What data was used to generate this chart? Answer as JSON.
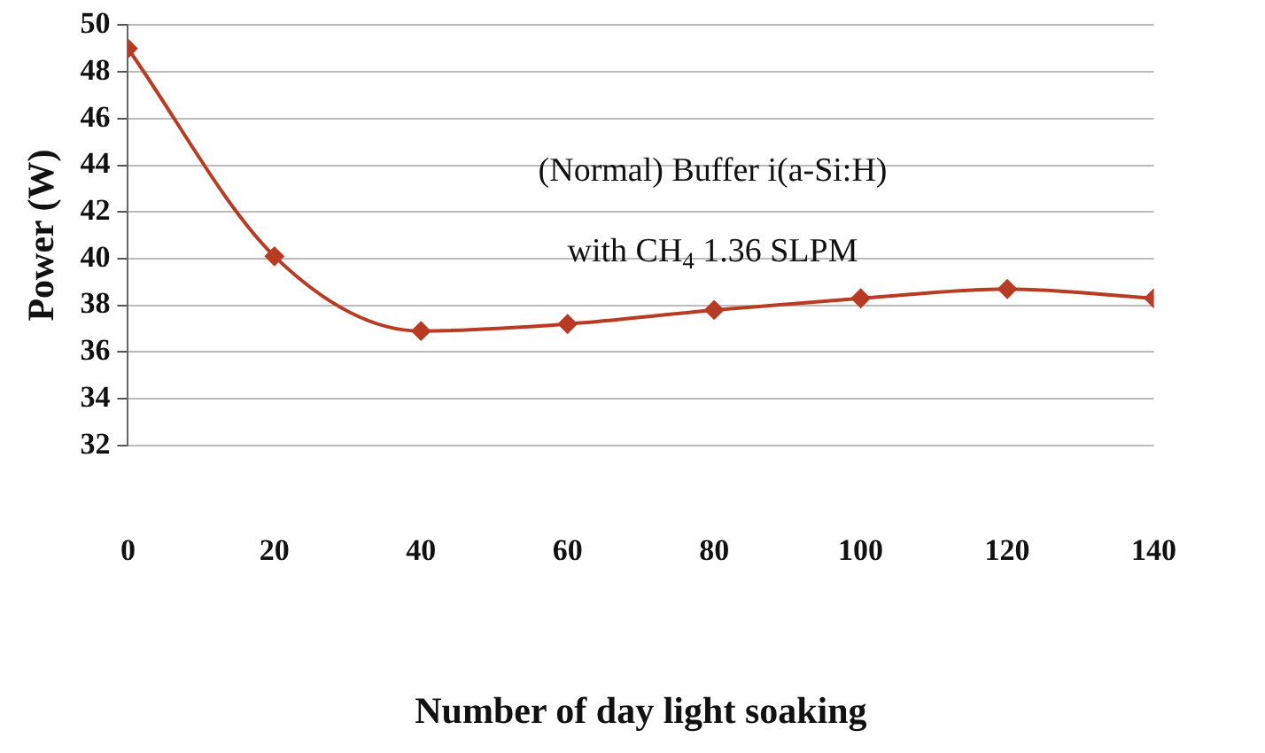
{
  "chart_data": {
    "type": "line",
    "xlabel": "Number of day light soaking",
    "ylabel": "Power (W)",
    "x": [
      0,
      20,
      40,
      60,
      80,
      100,
      120,
      140
    ],
    "series": [
      {
        "color": "#b83b24",
        "values": [
          49,
          40.1,
          36.9,
          37.2,
          37.8,
          38.3,
          38.7,
          38.3
        ]
      }
    ],
    "xlim": [
      0,
      140
    ],
    "xticks": [
      0,
      20,
      40,
      60,
      80,
      100,
      120,
      140
    ],
    "ylim": [
      32,
      50
    ],
    "yticks": [
      32,
      34,
      36,
      38,
      40,
      42,
      44,
      46,
      48,
      50
    ],
    "grid": "y",
    "legend": false,
    "marker": "diamond",
    "line_style": "solid",
    "annotations": [
      "(Normal) Buffer i(a-Si:H)",
      "with CH$_{4}$ 1.36 SLPM"
    ]
  }
}
